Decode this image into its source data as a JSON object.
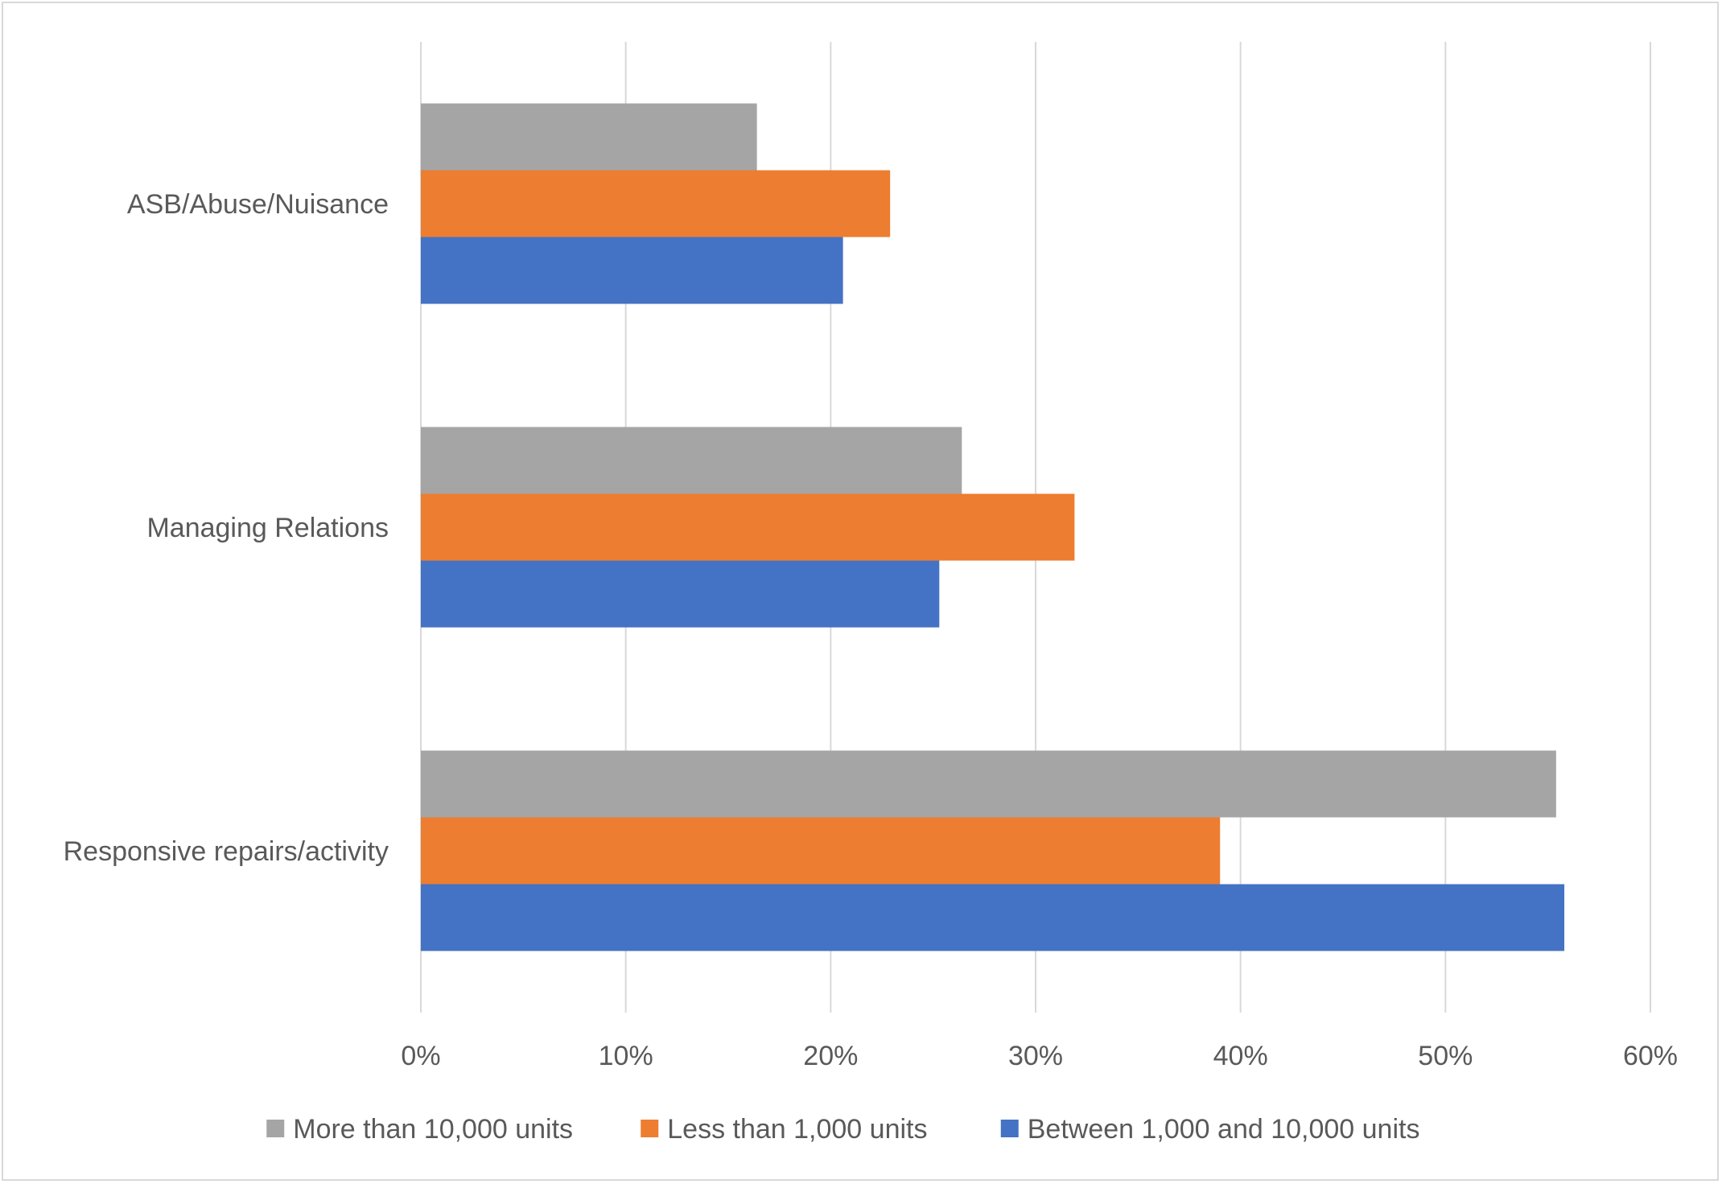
{
  "chart_data": {
    "type": "bar",
    "orientation": "horizontal",
    "title": "",
    "xlabel": "",
    "ylabel": "",
    "categories": [
      "ASB/Abuse/Nuisance",
      "Managing Relations",
      "Responsive repairs/activity"
    ],
    "series": [
      {
        "name": "More than 10,000 units",
        "color": "#a5a5a5",
        "values": [
          16.4,
          26.4,
          55.4
        ]
      },
      {
        "name": "Less than 1,000 units",
        "color": "#ed7d31",
        "values": [
          22.9,
          31.9,
          39.0
        ]
      },
      {
        "name": "Between 1,000 and 10,000 units",
        "color": "#4472c4",
        "values": [
          20.6,
          25.3,
          55.8
        ]
      }
    ],
    "xlim": [
      0,
      60
    ],
    "xticks": [
      "0%",
      "10%",
      "20%",
      "30%",
      "40%",
      "50%",
      "60%"
    ],
    "grid": "vertical",
    "legend_position": "bottom"
  }
}
